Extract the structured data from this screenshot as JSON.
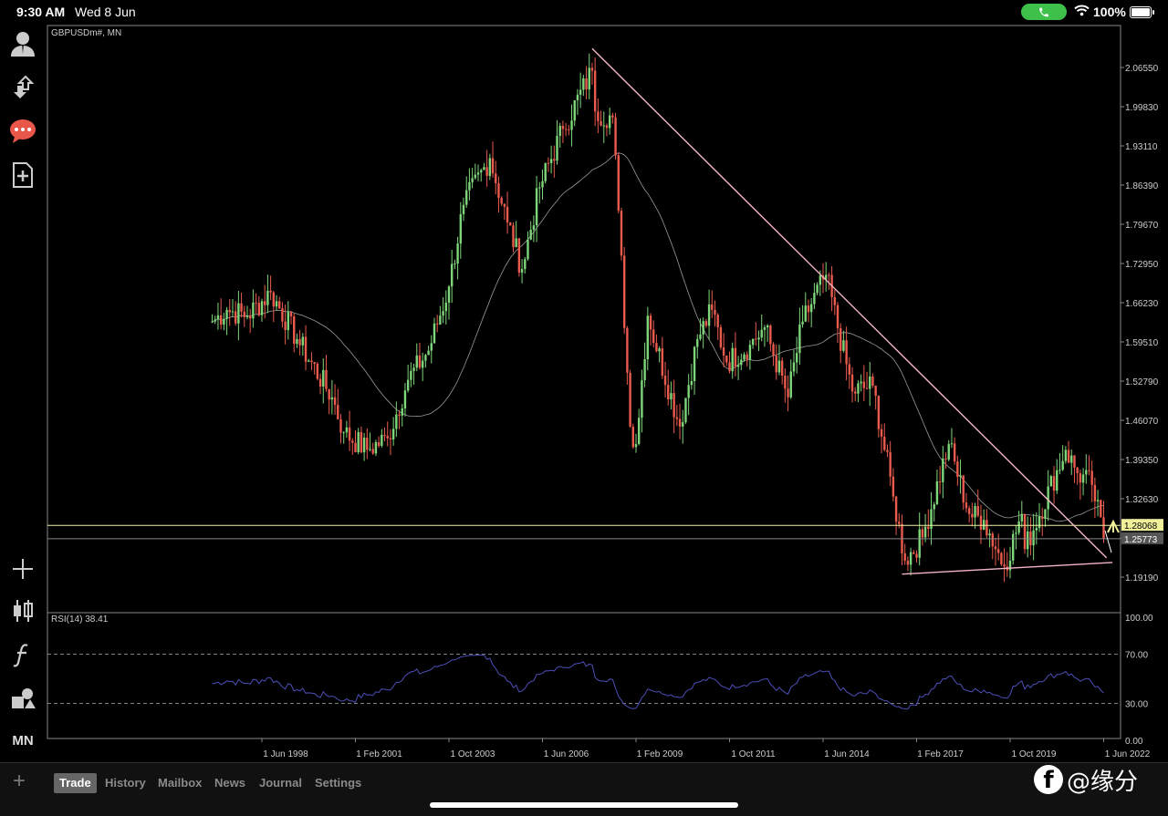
{
  "status": {
    "time": "9:30 AM",
    "date": "Wed 8 Jun",
    "battery": "100%"
  },
  "chart_title": "GBPUSDm#, MN",
  "rsi_label": "RSI(14) 38.41",
  "price_labels": {
    "current": "1.28068",
    "line2": "1.25773"
  },
  "sidebar": [
    "user-icon",
    "transfer-icon",
    "chat-icon",
    "new-document-icon",
    "crosshair-icon",
    "candles-icon",
    "function-icon",
    "objects-icon"
  ],
  "timeframe": "MN",
  "tabs": [
    "Trade",
    "History",
    "Mailbox",
    "News",
    "Journal",
    "Settings"
  ],
  "watermark": "@缘分",
  "colors": {
    "bull": "#7ed67a",
    "bear": "#ea5b4e",
    "rsi": "#4b4fb8",
    "hline_yellow": "#f0f09a",
    "trendline": "#f4b6c6"
  },
  "chart_data": {
    "type": "candlestick",
    "symbol": "GBPUSDm#",
    "timeframe": "MN",
    "y_ticks": [
      2.0655,
      1.9983,
      1.9311,
      1.8639,
      1.7967,
      1.7295,
      1.6623,
      1.5951,
      1.5279,
      1.4607,
      1.3935,
      1.3263,
      1.2591,
      1.1919
    ],
    "y_tick_labels": [
      "2.06550",
      "1.99830",
      "1.93110",
      "1.86390",
      "1.79670",
      "1.72950",
      "1.66230",
      "1.59510",
      "1.52790",
      "1.46070",
      "1.39350",
      "1.32630",
      "1.25910",
      "1.19190"
    ],
    "x_tick_labels": [
      "1 Jun 1998",
      "1 Feb 2001",
      "1 Oct 2003",
      "1 Jun 2006",
      "1 Feb 2009",
      "1 Oct 2011",
      "1 Jun 2014",
      "1 Feb 2017",
      "1 Oct 2019",
      "1 Jun 2022"
    ],
    "close_anchors": [
      [
        "1997-01",
        1.63
      ],
      [
        "1997-06",
        1.65
      ],
      [
        "1998-01",
        1.64
      ],
      [
        "1998-09",
        1.68
      ],
      [
        "1999-06",
        1.6
      ],
      [
        "2000-06",
        1.5
      ],
      [
        "2000-10",
        1.44
      ],
      [
        "2001-06",
        1.41
      ],
      [
        "2002-01",
        1.43
      ],
      [
        "2002-08",
        1.53
      ],
      [
        "2003-03",
        1.58
      ],
      [
        "2003-10",
        1.69
      ],
      [
        "2004-03",
        1.83
      ],
      [
        "2004-12",
        1.91
      ],
      [
        "2005-06",
        1.8
      ],
      [
        "2005-11",
        1.72
      ],
      [
        "2006-05",
        1.86
      ],
      [
        "2007-01",
        1.96
      ],
      [
        "2007-11",
        2.06
      ],
      [
        "2007-12",
        1.99
      ],
      [
        "2008-06",
        1.98
      ],
      [
        "2008-08",
        1.82
      ],
      [
        "2008-12",
        1.45
      ],
      [
        "2009-02",
        1.42
      ],
      [
        "2009-06",
        1.64
      ],
      [
        "2010-05",
        1.45
      ],
      [
        "2010-11",
        1.6
      ],
      [
        "2011-04",
        1.65
      ],
      [
        "2011-09",
        1.56
      ],
      [
        "2012-05",
        1.59
      ],
      [
        "2012-10",
        1.62
      ],
      [
        "2013-06",
        1.5
      ],
      [
        "2013-11",
        1.63
      ],
      [
        "2014-07",
        1.71
      ],
      [
        "2015-04",
        1.51
      ],
      [
        "2015-11",
        1.52
      ],
      [
        "2016-06",
        1.33
      ],
      [
        "2016-10",
        1.22
      ],
      [
        "2017-04",
        1.26
      ],
      [
        "2018-01",
        1.42
      ],
      [
        "2018-08",
        1.3
      ],
      [
        "2019-01",
        1.29
      ],
      [
        "2019-08",
        1.21
      ],
      [
        "2020-02",
        1.3
      ],
      [
        "2020-03",
        1.24
      ],
      [
        "2021-05",
        1.41
      ],
      [
        "2021-09",
        1.37
      ],
      [
        "2022-02",
        1.35
      ],
      [
        "2022-06",
        1.258
      ]
    ],
    "trendlines": [
      {
        "x1": "2007-11",
        "y1": 2.098,
        "x2": "2022-07",
        "y2": 1.225,
        "color": "#f4b6c6"
      },
      {
        "x1": "2016-09",
        "y1": 1.197,
        "x2": "2022-09",
        "y2": 1.217,
        "color": "#f4b6c6"
      }
    ],
    "hlines": [
      {
        "y": 1.28068,
        "color": "#f0f09a"
      },
      {
        "y": 1.25773,
        "color": "#888888"
      }
    ],
    "rsi": {
      "period": 14,
      "value": 38.41,
      "levels": [
        70,
        30
      ],
      "ylim": [
        0,
        100
      ],
      "tick_labels": [
        "100.00",
        "70.00",
        "30.00",
        "0.00"
      ]
    }
  }
}
